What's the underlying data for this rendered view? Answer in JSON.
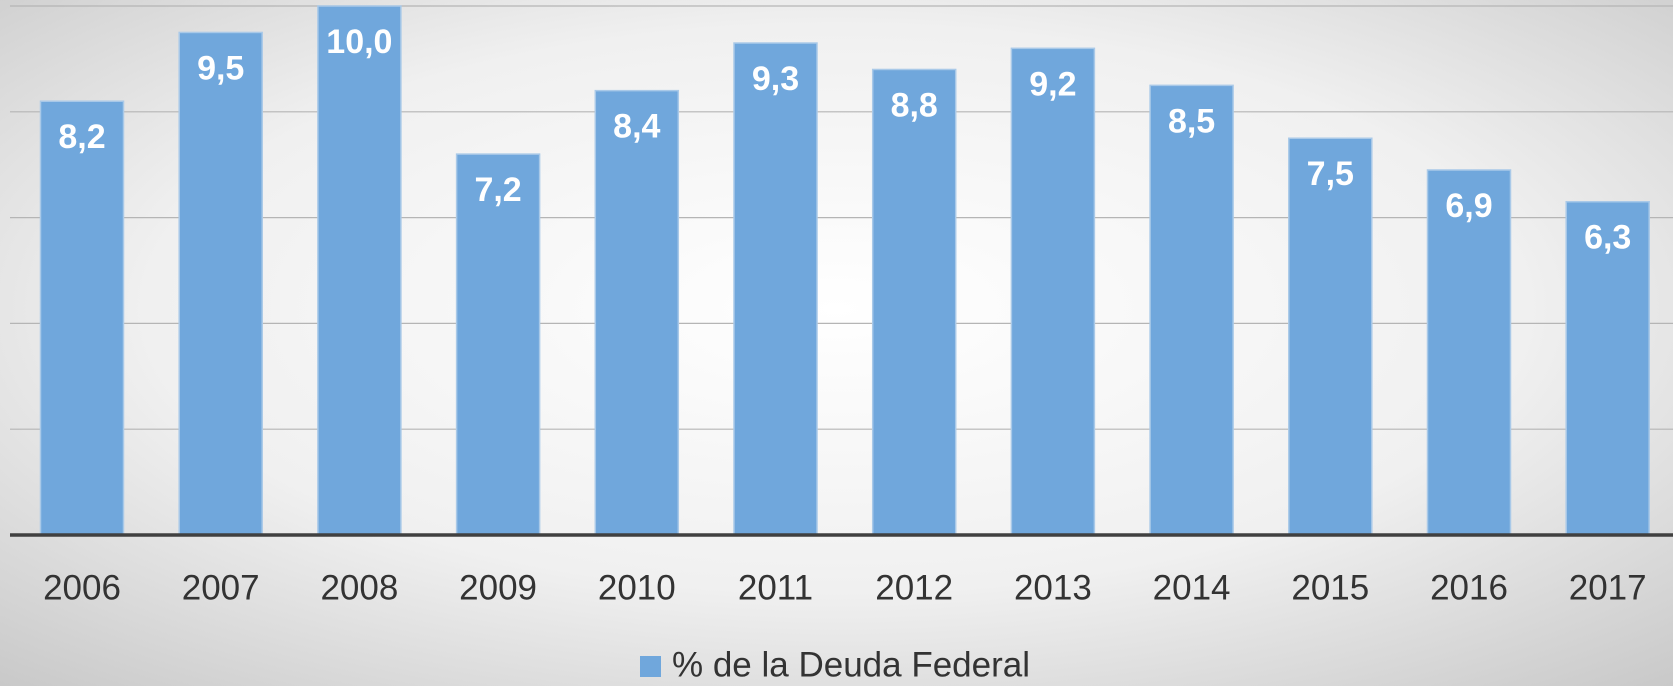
{
  "chart_data": {
    "type": "bar",
    "categories": [
      "2006",
      "2007",
      "2008",
      "2009",
      "2010",
      "2011",
      "2012",
      "2013",
      "2014",
      "2015",
      "2016",
      "2017"
    ],
    "series": [
      {
        "name": "% de la Deuda Federal",
        "color": "#70a7dc",
        "values": [
          8.2,
          9.5,
          10.0,
          7.2,
          8.4,
          9.3,
          8.8,
          9.2,
          8.5,
          7.5,
          6.9,
          6.3
        ],
        "value_labels": [
          "8,2",
          "9,5",
          "10,0",
          "7,2",
          "8,4",
          "9,3",
          "8,8",
          "9,2",
          "8,5",
          "7,5",
          "6,9",
          "6,3"
        ]
      }
    ],
    "ylim": [
      0,
      10
    ],
    "yticks": [
      0,
      2,
      4,
      6,
      8,
      10
    ],
    "grid": true,
    "legend": "bottom"
  }
}
